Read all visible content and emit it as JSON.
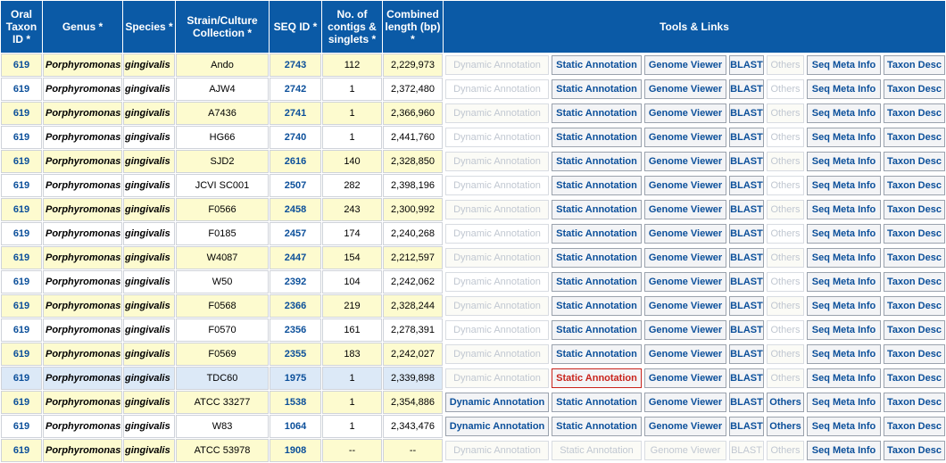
{
  "headers": {
    "oral_taxon_id": "Oral Taxon ID *",
    "genus": "Genus *",
    "species": "Species *",
    "strain": "Strain/Culture Collection *",
    "seq_id": "SEQ ID *",
    "contigs": "No. of contigs & singlets *",
    "length": "Combined length (bp) *",
    "tools": "Tools & Links"
  },
  "buttons": {
    "dynamic": "Dynamic Annotation",
    "static": "Static Annotation",
    "genome": "Genome Viewer",
    "blast": "BLAST",
    "others": "Others",
    "seq_meta": "Seq Meta Info",
    "taxon_desc": "Taxon Desc"
  },
  "rows": [
    {
      "taxon": "619",
      "genus": "Porphyromonas",
      "species": "gingivalis",
      "strain": "Ando",
      "seq_id": "2743",
      "contigs": "112",
      "length": "2,229,973",
      "dyn_enabled": false,
      "others_enabled": false,
      "static_enabled": true,
      "genome_enabled": true,
      "blast_enabled": true,
      "static_selected": false
    },
    {
      "taxon": "619",
      "genus": "Porphyromonas",
      "species": "gingivalis",
      "strain": "AJW4",
      "seq_id": "2742",
      "contigs": "1",
      "length": "2,372,480",
      "dyn_enabled": false,
      "others_enabled": false,
      "static_enabled": true,
      "genome_enabled": true,
      "blast_enabled": true,
      "static_selected": false
    },
    {
      "taxon": "619",
      "genus": "Porphyromonas",
      "species": "gingivalis",
      "strain": "A7436",
      "seq_id": "2741",
      "contigs": "1",
      "length": "2,366,960",
      "dyn_enabled": false,
      "others_enabled": false,
      "static_enabled": true,
      "genome_enabled": true,
      "blast_enabled": true,
      "static_selected": false
    },
    {
      "taxon": "619",
      "genus": "Porphyromonas",
      "species": "gingivalis",
      "strain": "HG66",
      "seq_id": "2740",
      "contigs": "1",
      "length": "2,441,760",
      "dyn_enabled": false,
      "others_enabled": false,
      "static_enabled": true,
      "genome_enabled": true,
      "blast_enabled": true,
      "static_selected": false
    },
    {
      "taxon": "619",
      "genus": "Porphyromonas",
      "species": "gingivalis",
      "strain": "SJD2",
      "seq_id": "2616",
      "contigs": "140",
      "length": "2,328,850",
      "dyn_enabled": false,
      "others_enabled": false,
      "static_enabled": true,
      "genome_enabled": true,
      "blast_enabled": true,
      "static_selected": false
    },
    {
      "taxon": "619",
      "genus": "Porphyromonas",
      "species": "gingivalis",
      "strain": "JCVI SC001",
      "seq_id": "2507",
      "contigs": "282",
      "length": "2,398,196",
      "dyn_enabled": false,
      "others_enabled": false,
      "static_enabled": true,
      "genome_enabled": true,
      "blast_enabled": true,
      "static_selected": false
    },
    {
      "taxon": "619",
      "genus": "Porphyromonas",
      "species": "gingivalis",
      "strain": "F0566",
      "seq_id": "2458",
      "contigs": "243",
      "length": "2,300,992",
      "dyn_enabled": false,
      "others_enabled": false,
      "static_enabled": true,
      "genome_enabled": true,
      "blast_enabled": true,
      "static_selected": false
    },
    {
      "taxon": "619",
      "genus": "Porphyromonas",
      "species": "gingivalis",
      "strain": "F0185",
      "seq_id": "2457",
      "contigs": "174",
      "length": "2,240,268",
      "dyn_enabled": false,
      "others_enabled": false,
      "static_enabled": true,
      "genome_enabled": true,
      "blast_enabled": true,
      "static_selected": false
    },
    {
      "taxon": "619",
      "genus": "Porphyromonas",
      "species": "gingivalis",
      "strain": "W4087",
      "seq_id": "2447",
      "contigs": "154",
      "length": "2,212,597",
      "dyn_enabled": false,
      "others_enabled": false,
      "static_enabled": true,
      "genome_enabled": true,
      "blast_enabled": true,
      "static_selected": false
    },
    {
      "taxon": "619",
      "genus": "Porphyromonas",
      "species": "gingivalis",
      "strain": "W50",
      "seq_id": "2392",
      "contigs": "104",
      "length": "2,242,062",
      "dyn_enabled": false,
      "others_enabled": false,
      "static_enabled": true,
      "genome_enabled": true,
      "blast_enabled": true,
      "static_selected": false
    },
    {
      "taxon": "619",
      "genus": "Porphyromonas",
      "species": "gingivalis",
      "strain": "F0568",
      "seq_id": "2366",
      "contigs": "219",
      "length": "2,328,244",
      "dyn_enabled": false,
      "others_enabled": false,
      "static_enabled": true,
      "genome_enabled": true,
      "blast_enabled": true,
      "static_selected": false
    },
    {
      "taxon": "619",
      "genus": "Porphyromonas",
      "species": "gingivalis",
      "strain": "F0570",
      "seq_id": "2356",
      "contigs": "161",
      "length": "2,278,391",
      "dyn_enabled": false,
      "others_enabled": false,
      "static_enabled": true,
      "genome_enabled": true,
      "blast_enabled": true,
      "static_selected": false
    },
    {
      "taxon": "619",
      "genus": "Porphyromonas",
      "species": "gingivalis",
      "strain": "F0569",
      "seq_id": "2355",
      "contigs": "183",
      "length": "2,242,027",
      "dyn_enabled": false,
      "others_enabled": false,
      "static_enabled": true,
      "genome_enabled": true,
      "blast_enabled": true,
      "static_selected": false
    },
    {
      "taxon": "619",
      "genus": "Porphyromonas",
      "species": "gingivalis",
      "strain": "TDC60",
      "seq_id": "1975",
      "contigs": "1",
      "length": "2,339,898",
      "dyn_enabled": false,
      "others_enabled": false,
      "static_enabled": true,
      "genome_enabled": true,
      "blast_enabled": true,
      "static_selected": true,
      "highlighted": true
    },
    {
      "taxon": "619",
      "genus": "Porphyromonas",
      "species": "gingivalis",
      "strain": "ATCC 33277",
      "seq_id": "1538",
      "contigs": "1",
      "length": "2,354,886",
      "dyn_enabled": true,
      "others_enabled": true,
      "static_enabled": true,
      "genome_enabled": true,
      "blast_enabled": true,
      "static_selected": false
    },
    {
      "taxon": "619",
      "genus": "Porphyromonas",
      "species": "gingivalis",
      "strain": "W83",
      "seq_id": "1064",
      "contigs": "1",
      "length": "2,343,476",
      "dyn_enabled": true,
      "others_enabled": true,
      "static_enabled": true,
      "genome_enabled": true,
      "blast_enabled": true,
      "static_selected": false
    },
    {
      "taxon": "619",
      "genus": "Porphyromonas",
      "species": "gingivalis",
      "strain": "ATCC 53978",
      "seq_id": "1908",
      "contigs": "--",
      "length": "--",
      "dyn_enabled": false,
      "others_enabled": false,
      "static_enabled": false,
      "genome_enabled": false,
      "blast_enabled": false,
      "static_selected": false
    }
  ]
}
